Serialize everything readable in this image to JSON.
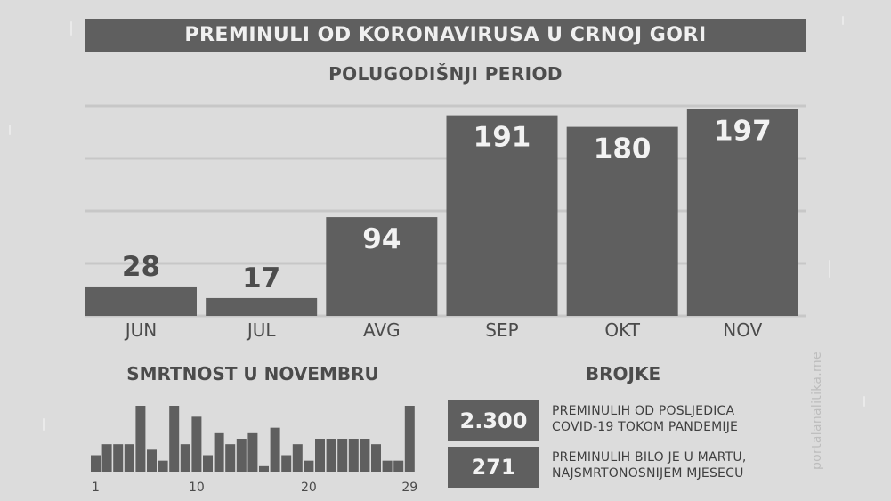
{
  "header": {
    "title": "PREMINULI OD KORONAVIRUSA U CRNOJ GORI",
    "subtitle": "POLUGODIŠNJI PERIOD"
  },
  "chart_data": [
    {
      "type": "bar",
      "categories": [
        "JUN",
        "JUL",
        "AVG",
        "SEP",
        "OKT",
        "NOV"
      ],
      "values": [
        28,
        17,
        94,
        191,
        180,
        197
      ],
      "title": "POLUGODIŠNJI PERIOD",
      "xlabel": "",
      "ylabel": "",
      "ylim": [
        0,
        200
      ],
      "grid": true,
      "bar_color": "#5f5f5f",
      "grid_color": "#c7c7c7"
    },
    {
      "type": "bar",
      "title": "SMRTNOST U NOVEMBRU",
      "x": [
        1,
        2,
        3,
        4,
        5,
        6,
        7,
        8,
        9,
        10,
        11,
        12,
        13,
        14,
        15,
        16,
        17,
        18,
        19,
        20,
        21,
        22,
        23,
        24,
        25,
        26,
        27,
        28,
        29
      ],
      "values": [
        3,
        5,
        5,
        5,
        12,
        4,
        2,
        12,
        5,
        10,
        3,
        7,
        5,
        6,
        7,
        1,
        8,
        3,
        5,
        2,
        6,
        6,
        6,
        6,
        6,
        5,
        2,
        2,
        12
      ],
      "tick_labels": [
        "1",
        "10",
        "20",
        "29"
      ],
      "xlabel": "",
      "ylabel": "",
      "ylim": [
        0,
        12
      ],
      "grid": false,
      "bar_color": "#5f5f5f"
    }
  ],
  "small_chart": {
    "title": "SMRTNOST U NOVEMBRU"
  },
  "stats": {
    "title": "BROJKE",
    "items": [
      {
        "value": "2.300",
        "text_line1": "PREMINULIH OD POSLJEDICA",
        "text_line2": "COVID-19 TOKOM PANDEMIJE"
      },
      {
        "value": "271",
        "text_line1": "PREMINULIH BILO JE U MARTU,",
        "text_line2": "NAJSMRTONOSNIJEM MJESECU"
      }
    ]
  },
  "watermark": {
    "text": "portalanalitika.me"
  },
  "colors": {
    "background": "#dcdcdc",
    "primary": "#5f5f5f",
    "text": "#4b4b4b",
    "title_text": "#f0f0f0"
  }
}
